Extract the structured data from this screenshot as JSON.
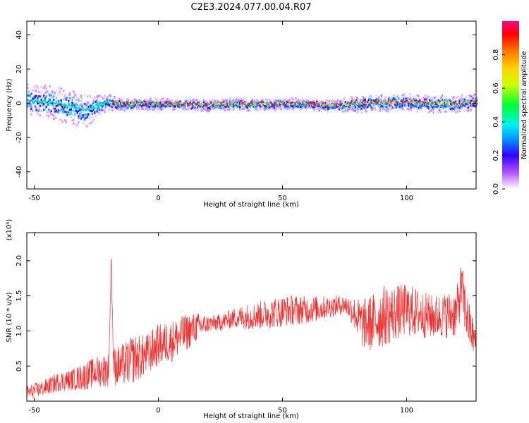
{
  "title": "C2E3.2024.077.00.04.R07",
  "chart_data": [
    {
      "type": "heatmap",
      "xlabel": "Height of straight line (km)",
      "ylabel": "Frequency (Hz)",
      "xlim": [
        -53,
        128
      ],
      "ylim": [
        -50,
        48
      ],
      "xticks": [
        -50,
        0,
        50,
        100
      ],
      "yticks": [
        -40,
        -20,
        0,
        20,
        40
      ],
      "colorbar": {
        "label": "Normalized spectral amplitude",
        "range": [
          0,
          1
        ],
        "ticks": [
          "0.0",
          "0.2",
          "0.4",
          "0.6",
          "0.8"
        ],
        "tick_values": [
          0.0,
          0.2,
          0.4,
          0.6,
          0.8
        ]
      },
      "ridge": {
        "x": [
          -53,
          -45,
          -40,
          -35,
          -30,
          -25,
          -20,
          -15,
          -10,
          -5,
          0,
          10,
          20,
          30,
          40,
          50,
          60,
          70,
          80,
          90,
          100,
          110,
          120,
          128
        ],
        "center_hz": [
          2,
          1,
          0,
          -2,
          -4,
          -1,
          1,
          0,
          0,
          0,
          0,
          0,
          -1,
          0,
          0,
          0,
          0,
          -1,
          0,
          1,
          1,
          0,
          0,
          1
        ],
        "spread_hz": [
          6,
          6,
          6,
          6,
          7,
          4,
          3,
          2,
          2,
          2,
          2,
          2,
          2,
          2,
          2,
          2,
          2,
          2,
          3,
          3,
          3,
          3,
          3,
          3
        ]
      },
      "grid": false
    },
    {
      "type": "line",
      "xlabel": "Height of straight line (km)",
      "ylabel": "SNR (10 * v/v)",
      "y_multiplier": "(x10⁴)",
      "xlim": [
        -53,
        128
      ],
      "ylim": [
        0,
        2.4
      ],
      "xticks": [
        -50,
        0,
        50,
        100
      ],
      "yticks": [
        "0.5",
        "1.0",
        "1.5",
        "2.0"
      ],
      "ytick_values": [
        0.5,
        1.0,
        1.5,
        2.0
      ],
      "color": "#ee3333",
      "series": [
        {
          "x": [
            -53,
            -45,
            -40,
            -35,
            -30,
            -25,
            -20,
            -19,
            -18,
            -15,
            -10,
            -5,
            0,
            5,
            10,
            15,
            20,
            25,
            30,
            35,
            40,
            45,
            50,
            55,
            60,
            65,
            70,
            75,
            78,
            82,
            85,
            90,
            95,
            100,
            105,
            110,
            115,
            120,
            122,
            125,
            128
          ],
          "y": [
            0.12,
            0.2,
            0.28,
            0.3,
            0.35,
            0.42,
            0.45,
            1.95,
            0.5,
            0.5,
            0.6,
            0.65,
            0.8,
            0.85,
            0.95,
            1.05,
            1.1,
            1.12,
            1.18,
            1.2,
            1.22,
            1.25,
            1.28,
            1.3,
            1.3,
            1.32,
            1.35,
            1.38,
            1.3,
            1.1,
            1.1,
            1.2,
            1.25,
            1.3,
            1.25,
            1.2,
            1.22,
            1.25,
            1.6,
            1.1,
            0.8
          ],
          "noise": [
            0.1,
            0.12,
            0.14,
            0.15,
            0.2,
            0.22,
            0.25,
            0.0,
            0.28,
            0.3,
            0.35,
            0.3,
            0.3,
            0.3,
            0.28,
            0.22,
            0.12,
            0.12,
            0.14,
            0.18,
            0.2,
            0.22,
            0.22,
            0.22,
            0.2,
            0.18,
            0.15,
            0.14,
            0.2,
            0.35,
            0.4,
            0.45,
            0.4,
            0.38,
            0.35,
            0.32,
            0.32,
            0.35,
            0.4,
            0.35,
            0.2
          ]
        }
      ],
      "grid": false
    }
  ]
}
